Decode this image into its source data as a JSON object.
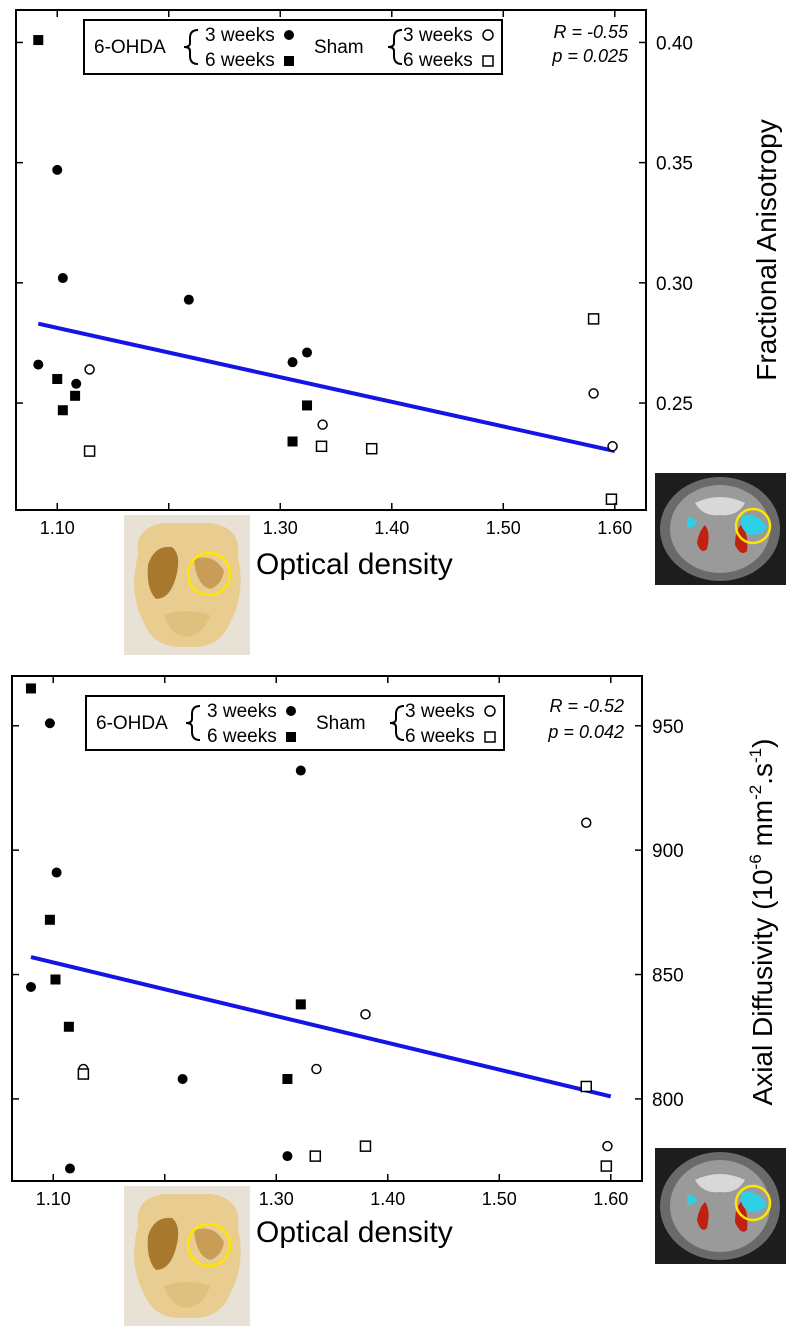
{
  "chart_data": [
    {
      "type": "scatter",
      "title": "",
      "xlabel": "Optical density",
      "ylabel": "Fractional Anisotropy",
      "xlim": [
        1.063,
        1.628
      ],
      "ylim": [
        0.2055,
        0.4135
      ],
      "xticks": [
        "1.10",
        "1.20",
        "1.30",
        "1.40",
        "1.50",
        "1.60"
      ],
      "xtick_values": [
        1.1,
        1.2,
        1.3,
        1.4,
        1.5,
        1.6
      ],
      "yticks": [
        "0.25",
        "0.30",
        "0.35",
        "0.40"
      ],
      "ytick_values": [
        0.25,
        0.3,
        0.35,
        0.4
      ],
      "y_axis_side": "right",
      "grid": false,
      "legend_position": "top-left",
      "legend": {
        "group1": "6-OHDA",
        "group2": "Sham",
        "w3": "3 weeks",
        "w6": "6 weeks"
      },
      "annotation_r": "R = -0.55",
      "annotation_p": "p = 0.025",
      "fit_line": {
        "x": [
          1.083,
          1.6
        ],
        "y": [
          0.283,
          0.23
        ],
        "color": "#1414e6"
      },
      "series": [
        {
          "name": "6-OHDA 3 weeks",
          "marker": "filled-circle",
          "x": [
            1.1,
            1.105,
            1.083,
            1.117,
            1.218,
            1.311,
            1.324
          ],
          "y": [
            0.347,
            0.302,
            0.266,
            0.258,
            0.293,
            0.267,
            0.271
          ]
        },
        {
          "name": "6-OHDA 6 weeks",
          "marker": "filled-square",
          "x": [
            1.083,
            1.1,
            1.116,
            1.105,
            1.311,
            1.324
          ],
          "y": [
            0.401,
            0.26,
            0.253,
            0.247,
            0.234,
            0.249
          ]
        },
        {
          "name": "Sham 3 weeks",
          "marker": "open-circle",
          "x": [
            1.129,
            1.338,
            1.581,
            1.598
          ],
          "y": [
            0.264,
            0.241,
            0.254,
            0.232
          ]
        },
        {
          "name": "Sham 6 weeks",
          "marker": "open-square",
          "x": [
            1.129,
            1.337,
            1.382,
            1.581,
            1.597
          ],
          "y": [
            0.23,
            0.232,
            0.231,
            0.285,
            0.21
          ]
        }
      ]
    },
    {
      "type": "scatter",
      "title": "",
      "xlabel": "Optical density",
      "ylabel_main": "Axial Diffusivity (10",
      "ylabel_sup1": "-6",
      "ylabel_mid": " mm",
      "ylabel_sup2": "-2",
      "ylabel_mid2": ".s",
      "ylabel_sup3": "-1",
      "ylabel_end": ")",
      "xlim": [
        1.063,
        1.628
      ],
      "ylim": [
        767,
        970
      ],
      "xticks": [
        "1.10",
        "1.20",
        "1.30",
        "1.40",
        "1.50",
        "1.60"
      ],
      "xtick_values": [
        1.1,
        1.2,
        1.3,
        1.4,
        1.5,
        1.6
      ],
      "yticks": [
        "800",
        "850",
        "900",
        "950"
      ],
      "ytick_values": [
        800,
        850,
        900,
        950
      ],
      "y_axis_side": "right",
      "grid": false,
      "legend_position": "top-left",
      "legend": {
        "group1": "6-OHDA",
        "group2": "Sham",
        "w3": "3 weeks",
        "w6": "6 weeks"
      },
      "annotation_r": "R = -0.52",
      "annotation_p": "p = 0.042",
      "fit_line": {
        "x": [
          1.08,
          1.6
        ],
        "y": [
          857,
          801
        ],
        "color": "#1414e6"
      },
      "series": [
        {
          "name": "6-OHDA 3 weeks",
          "marker": "filled-circle",
          "x": [
            1.097,
            1.103,
            1.08,
            1.115,
            1.216,
            1.322,
            1.31
          ],
          "y": [
            951,
            891,
            845,
            772,
            808,
            932,
            777
          ]
        },
        {
          "name": "6-OHDA 6 weeks",
          "marker": "filled-square",
          "x": [
            1.08,
            1.097,
            1.102,
            1.114,
            1.322,
            1.31
          ],
          "y": [
            965,
            872,
            848,
            829,
            838,
            808
          ]
        },
        {
          "name": "Sham 3 weeks",
          "marker": "open-circle",
          "x": [
            1.127,
            1.336,
            1.38,
            1.578,
            1.597
          ],
          "y": [
            812,
            812,
            834,
            911,
            781
          ]
        },
        {
          "name": "Sham 6 weeks",
          "marker": "open-square",
          "x": [
            1.127,
            1.335,
            1.38,
            1.578,
            1.596
          ],
          "y": [
            810,
            777,
            781,
            805,
            773
          ]
        }
      ]
    }
  ]
}
